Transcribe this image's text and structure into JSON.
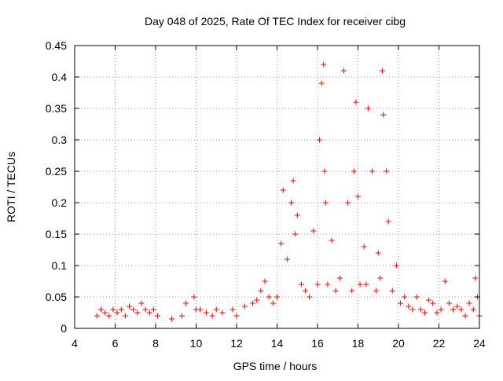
{
  "chart_data": {
    "type": "scatter",
    "title": "Day 048 of 2025, Rate Of TEC Index for receiver cibg",
    "xlabel": "GPS time / hours",
    "ylabel": "ROTI / TECUs",
    "xlim": [
      4,
      24
    ],
    "ylim": [
      0,
      0.45
    ],
    "xticks": [
      "4",
      "6",
      "8",
      "10",
      "12",
      "14",
      "16",
      "18",
      "20",
      "22",
      "24"
    ],
    "yticks": [
      "0",
      "0.05",
      "0.1",
      "0.15",
      "0.2",
      "0.25",
      "0.3",
      "0.35",
      "0.4",
      "0.45"
    ],
    "grid": true,
    "marker": "+",
    "color": "#ff0000",
    "series": [
      {
        "name": "ROTI",
        "x": [
          5.1,
          5.3,
          5.5,
          5.7,
          5.9,
          6.1,
          6.3,
          6.5,
          6.7,
          6.9,
          7.1,
          7.3,
          7.5,
          7.7,
          7.9,
          8.1,
          8.8,
          9.3,
          9.5,
          9.9,
          10.0,
          10.2,
          10.5,
          10.8,
          11.0,
          11.3,
          11.8,
          12.0,
          12.4,
          12.8,
          13.0,
          13.2,
          13.4,
          13.6,
          13.8,
          14.0,
          14.2,
          14.3,
          14.5,
          14.7,
          14.8,
          14.9,
          15.0,
          15.2,
          15.4,
          15.6,
          15.8,
          16.0,
          16.1,
          16.2,
          16.3,
          16.35,
          16.4,
          16.5,
          16.7,
          16.9,
          17.1,
          17.3,
          17.5,
          17.7,
          17.8,
          17.9,
          18.0,
          18.1,
          18.3,
          18.4,
          18.5,
          18.7,
          18.9,
          19.0,
          19.1,
          19.2,
          19.25,
          19.4,
          19.5,
          19.7,
          19.9,
          20.1,
          20.3,
          20.5,
          20.7,
          20.9,
          21.1,
          21.3,
          21.5,
          21.7,
          21.9,
          22.1,
          22.3,
          22.5,
          22.7,
          22.9,
          23.1,
          23.3,
          23.5,
          23.7,
          23.8,
          23.9,
          24.0
        ],
        "y": [
          0.02,
          0.03,
          0.025,
          0.02,
          0.03,
          0.025,
          0.03,
          0.02,
          0.035,
          0.03,
          0.025,
          0.04,
          0.03,
          0.025,
          0.03,
          0.02,
          0.015,
          0.02,
          0.04,
          0.05,
          0.03,
          0.03,
          0.025,
          0.02,
          0.03,
          0.025,
          0.03,
          0.02,
          0.035,
          0.04,
          0.045,
          0.06,
          0.075,
          0.05,
          0.04,
          0.05,
          0.135,
          0.22,
          0.11,
          0.2,
          0.235,
          0.15,
          0.18,
          0.07,
          0.06,
          0.05,
          0.155,
          0.07,
          0.3,
          0.39,
          0.42,
          0.25,
          0.2,
          0.07,
          0.14,
          0.06,
          0.08,
          0.41,
          0.2,
          0.06,
          0.25,
          0.36,
          0.21,
          0.07,
          0.13,
          0.07,
          0.35,
          0.25,
          0.06,
          0.12,
          0.08,
          0.41,
          0.34,
          0.25,
          0.17,
          0.06,
          0.1,
          0.04,
          0.05,
          0.035,
          0.03,
          0.05,
          0.03,
          0.025,
          0.045,
          0.04,
          0.025,
          0.03,
          0.075,
          0.04,
          0.03,
          0.035,
          0.03,
          0.02,
          0.04,
          0.03,
          0.08,
          0.05,
          0.02
        ]
      }
    ]
  }
}
